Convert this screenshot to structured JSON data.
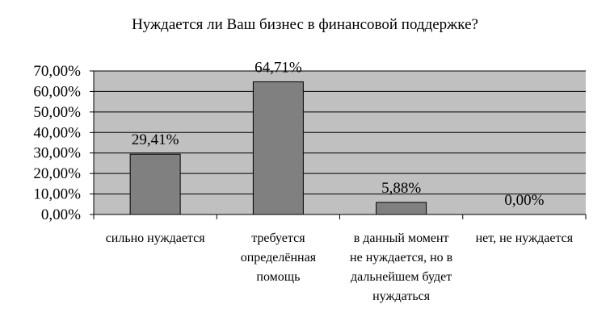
{
  "chart_data": {
    "type": "bar",
    "title": "Нуждается ли Ваш бизнес в финансовой поддержке?",
    "categories": [
      [
        "сильно нуждается"
      ],
      [
        "требуется",
        "определённая",
        "помощь"
      ],
      [
        "в данный момент",
        "не нуждается, но в",
        "дальнейшем будет",
        "нуждаться"
      ],
      [
        "нет, не нуждается"
      ]
    ],
    "values": [
      29.41,
      64.71,
      5.88,
      0.0
    ],
    "data_labels": [
      "29,41%",
      "64,71%",
      "5,88%",
      "0,00%"
    ],
    "yticks": [
      "0,00%",
      "10,00%",
      "20,00%",
      "30,00%",
      "40,00%",
      "50,00%",
      "60,00%",
      "70,00%"
    ],
    "ylim": [
      0,
      70
    ],
    "grid": true,
    "colors": {
      "plot_bg": "#c0c0c0",
      "bar": "#808080",
      "grid": "#000000"
    }
  }
}
